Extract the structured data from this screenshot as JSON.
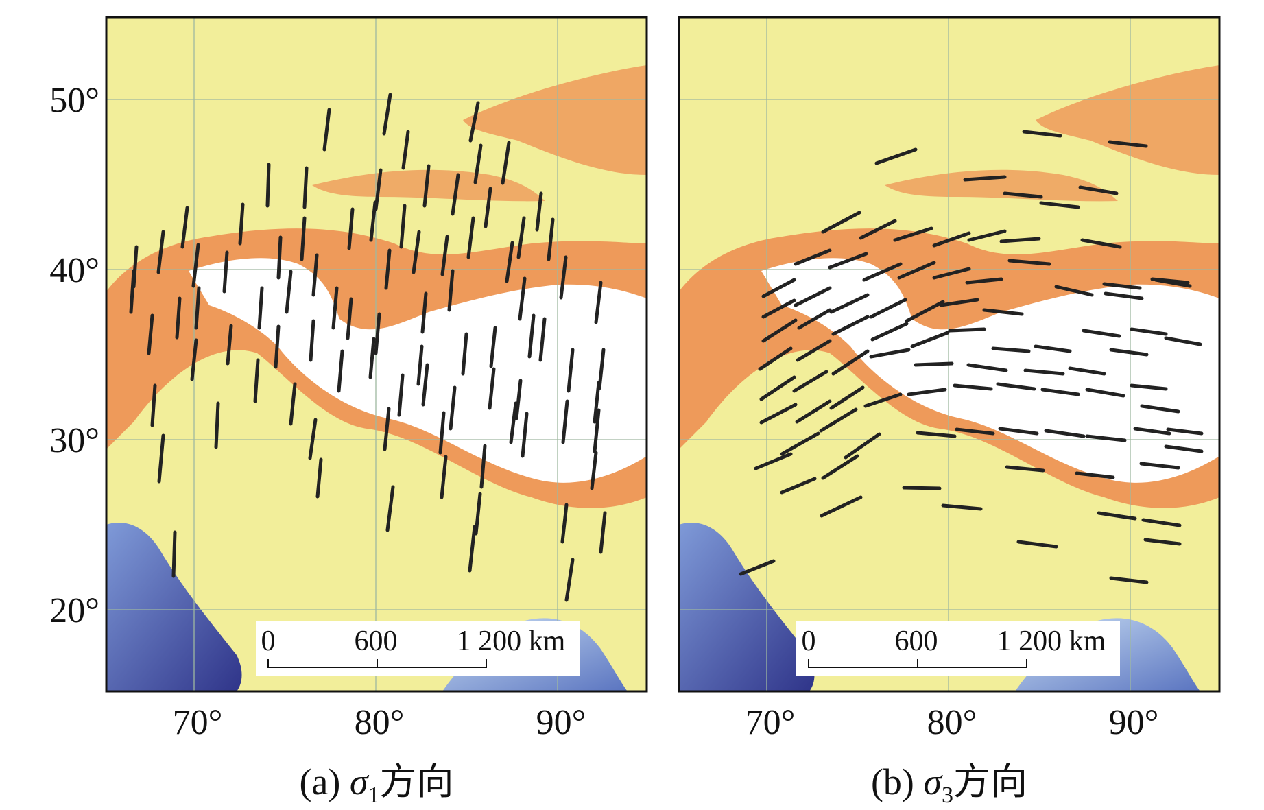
{
  "figure": {
    "y_axis_labels": [
      "50°",
      "40°",
      "30°",
      "20°"
    ],
    "panels": [
      {
        "id": "a",
        "caption_prefix": "(a) ",
        "caption_sigma": "σ",
        "caption_subscript": "1",
        "caption_suffix": "方向",
        "x_axis_labels": [
          "70°",
          "80°",
          "90°"
        ],
        "scale_bar": {
          "labels": [
            "0",
            "600",
            "1 200 km"
          ]
        },
        "stress_orientation": "near-vertical (N–S to NNE–SSW)"
      },
      {
        "id": "b",
        "caption_prefix": "(b) ",
        "caption_sigma": "σ",
        "caption_subscript": "3",
        "caption_suffix": "方向",
        "x_axis_labels": [
          "70°",
          "80°",
          "90°"
        ],
        "scale_bar": {
          "labels": [
            "0",
            "600",
            "1 200 km"
          ]
        },
        "stress_orientation": "near-horizontal (E–W), fanning NE–SW in the west"
      }
    ],
    "colors": {
      "lowland": "#f2ee9a",
      "plateau_edge": "#ee9a5a",
      "plateau": "#ffffff",
      "ocean_deep": "#3a3f9a",
      "ocean_shallow": "#a9c8ec",
      "stress_bar": "#222222",
      "grid": "#9fb8a0"
    }
  }
}
